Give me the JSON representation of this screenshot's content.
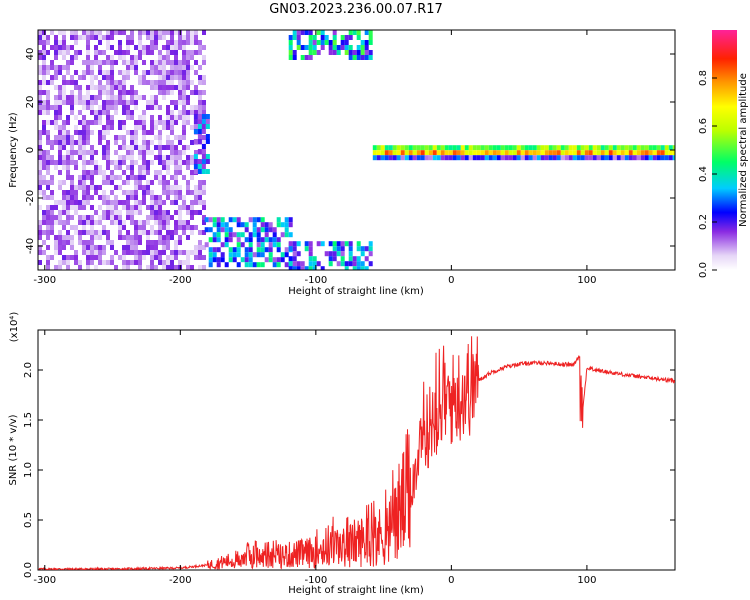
{
  "title": "GN03.2023.236.00.07.R17",
  "chart_data": [
    {
      "type": "heatmap",
      "xlabel": "Height of straight line (km)",
      "ylabel": "Frequency (Hz)",
      "xlim": [
        -305,
        165
      ],
      "ylim": [
        -50,
        50
      ],
      "x_ticks": [
        -300,
        -200,
        -100,
        0,
        100
      ],
      "y_ticks": [
        -40,
        -20,
        0,
        20,
        40
      ],
      "colorbar": {
        "label": "Normalized spectral amplitude",
        "range": [
          0,
          1
        ],
        "ticks": [
          "0.0",
          "0.2",
          "0.4",
          "0.6",
          "0.8"
        ]
      },
      "regions": [
        {
          "x": [
            -305,
            -182
          ],
          "y": [
            -50,
            50
          ],
          "level": 0.12
        },
        {
          "x": [
            -190,
            -180
          ],
          "y": [
            -10,
            15
          ],
          "level": 0.25
        },
        {
          "x": [
            -182,
            -120
          ],
          "y": [
            -48,
            -28
          ],
          "level": 0.3
        },
        {
          "x": [
            -120,
            -60
          ],
          "y": [
            -50,
            -38
          ],
          "level": 0.3
        },
        {
          "x": [
            -120,
            -60
          ],
          "y": [
            38,
            50
          ],
          "level": 0.35
        },
        {
          "x": [
            -58,
            165
          ],
          "y": [
            -3,
            2
          ],
          "level": 0.9
        }
      ]
    },
    {
      "type": "line",
      "xlabel": "Height of straight line (km)",
      "ylabel": "SNR (10 * v/v)",
      "y_multiplier": "(x10⁴)",
      "xlim": [
        -305,
        165
      ],
      "ylim": [
        0,
        2.4
      ],
      "x_ticks": [
        -300,
        -200,
        -100,
        0,
        100
      ],
      "y_ticks": [
        "0.0",
        "0.5",
        "1.0",
        "1.5",
        "2.0"
      ],
      "series": [
        {
          "color": "#ee2222",
          "x": [
            -305,
            -250,
            -200,
            -180,
            -160,
            -150,
            -140,
            -120,
            -100,
            -90,
            -80,
            -70,
            -60,
            -50,
            -45,
            -40,
            -30,
            -25,
            -20,
            -15,
            -10,
            -5,
            0,
            5,
            10,
            20,
            30,
            40,
            50,
            60,
            70,
            80,
            90,
            95,
            97,
            100,
            110,
            120,
            140,
            165
          ],
          "y": [
            0.01,
            0.01,
            0.02,
            0.05,
            0.1,
            0.15,
            0.12,
            0.15,
            0.18,
            0.25,
            0.22,
            0.28,
            0.3,
            0.35,
            0.4,
            0.55,
            0.8,
            1.1,
            1.3,
            1.5,
            1.6,
            1.65,
            1.7,
            1.75,
            1.8,
            1.9,
            1.98,
            2.03,
            2.06,
            2.07,
            2.07,
            2.06,
            2.05,
            2.15,
            1.6,
            2.02,
            1.99,
            1.97,
            1.93,
            1.89
          ]
        }
      ]
    }
  ]
}
